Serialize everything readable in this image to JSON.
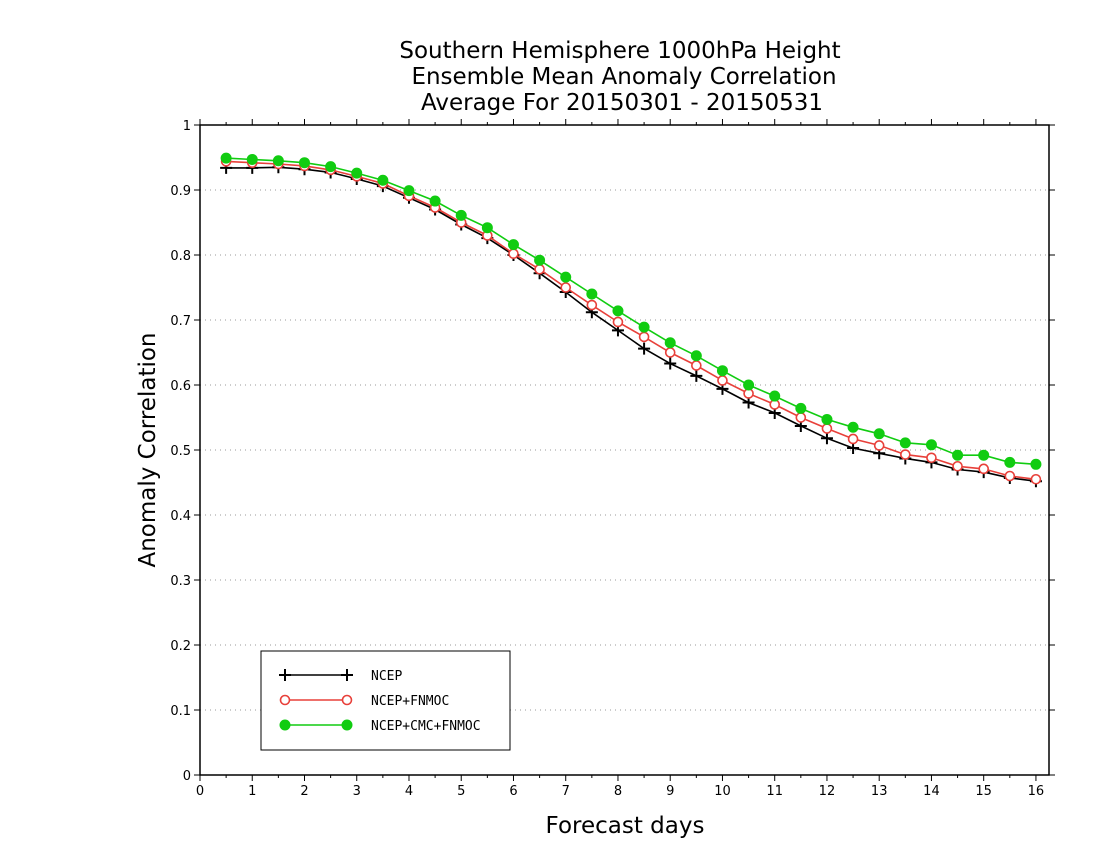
{
  "chart_data": {
    "type": "line",
    "title": [
      "Southern Hemisphere 1000hPa Height",
      "Ensemble Mean Anomaly Correlation",
      "Average For 20150301 - 20150531"
    ],
    "xlabel": "Forecast days",
    "ylabel": "Anomaly Correlation",
    "xlim": [
      0,
      16.25
    ],
    "ylim": [
      0,
      1
    ],
    "x_ticks": [
      0,
      1,
      2,
      3,
      4,
      5,
      6,
      7,
      8,
      9,
      10,
      11,
      12,
      13,
      14,
      15,
      16
    ],
    "y_ticks": [
      0,
      0.1,
      0.2,
      0.3,
      0.4,
      0.5,
      0.6,
      0.7,
      0.8,
      0.9,
      1
    ],
    "grid": "horizontal dotted",
    "legend_position": "bottom-left",
    "x": [
      0.5,
      1.0,
      1.5,
      2.0,
      2.5,
      3.0,
      3.5,
      4.0,
      4.5,
      5.0,
      5.5,
      6.0,
      6.5,
      7.0,
      7.5,
      8.0,
      8.5,
      9.0,
      9.5,
      10.0,
      10.5,
      11.0,
      11.5,
      12.0,
      12.5,
      13.0,
      13.5,
      14.0,
      14.5,
      15.0,
      15.5,
      16.0
    ],
    "series": [
      {
        "name": "NCEP",
        "color": "#000000",
        "marker": "plus",
        "values": [
          0.934,
          0.934,
          0.935,
          0.932,
          0.927,
          0.917,
          0.906,
          0.888,
          0.87,
          0.847,
          0.826,
          0.8,
          0.772,
          0.743,
          0.712,
          0.684,
          0.656,
          0.633,
          0.614,
          0.594,
          0.573,
          0.557,
          0.537,
          0.518,
          0.503,
          0.495,
          0.487,
          0.481,
          0.47,
          0.466,
          0.457,
          0.452
        ]
      },
      {
        "name": "NCEP+FNMOC",
        "color": "#e8403a",
        "marker": "open-circle",
        "values": [
          0.944,
          0.942,
          0.94,
          0.937,
          0.931,
          0.921,
          0.91,
          0.891,
          0.873,
          0.85,
          0.83,
          0.802,
          0.778,
          0.75,
          0.723,
          0.697,
          0.674,
          0.65,
          0.63,
          0.607,
          0.587,
          0.57,
          0.55,
          0.533,
          0.517,
          0.507,
          0.493,
          0.488,
          0.475,
          0.471,
          0.46,
          0.455
        ]
      },
      {
        "name": "NCEP+CMC+FNMOC",
        "color": "#11cc11",
        "marker": "filled-circle",
        "values": [
          0.949,
          0.947,
          0.945,
          0.942,
          0.936,
          0.926,
          0.915,
          0.899,
          0.883,
          0.861,
          0.842,
          0.816,
          0.792,
          0.766,
          0.74,
          0.714,
          0.689,
          0.665,
          0.645,
          0.622,
          0.6,
          0.583,
          0.564,
          0.547,
          0.535,
          0.525,
          0.511,
          0.508,
          0.492,
          0.492,
          0.481,
          0.478
        ]
      }
    ]
  }
}
